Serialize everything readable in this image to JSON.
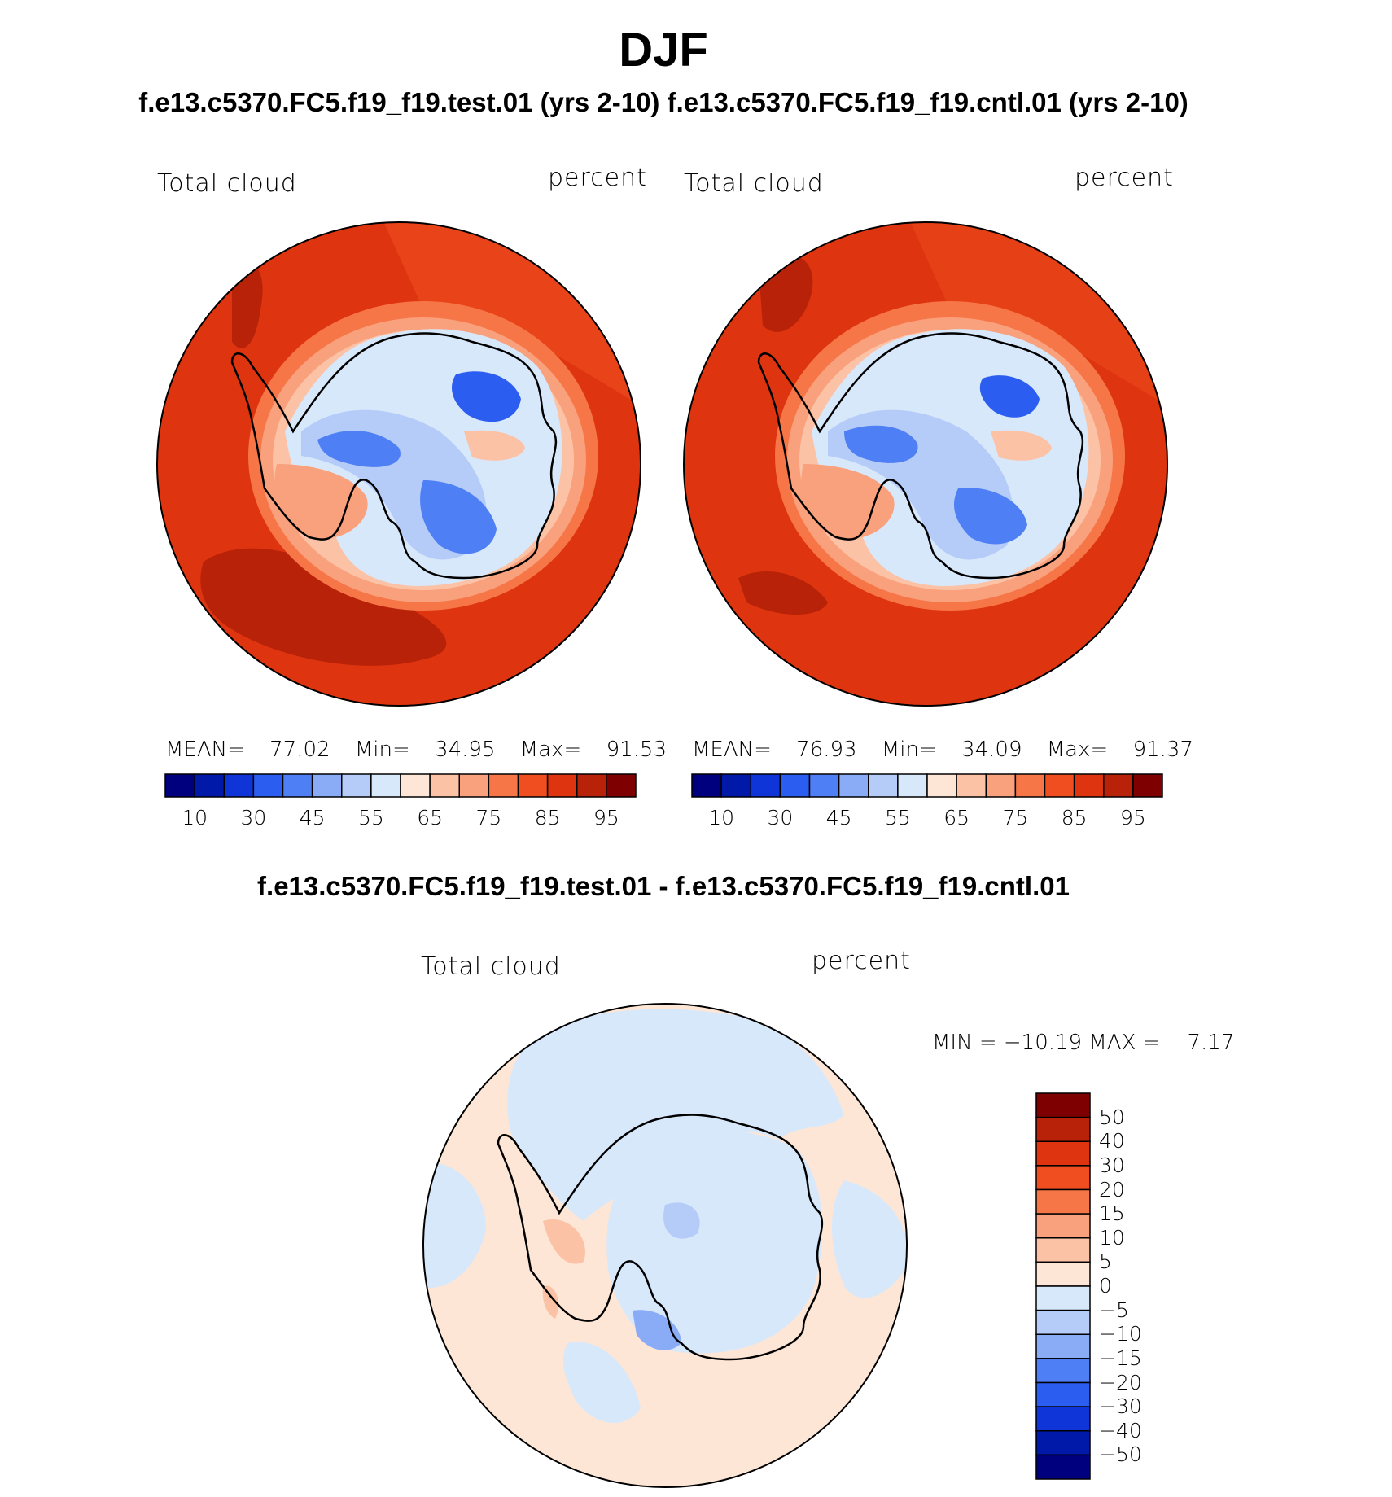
{
  "header": {
    "season": "DJF",
    "subtitle": "f.e13.c5370.FC5.f19_f19.test.01 (yrs 2-10) f.e13.c5370.FC5.f19_f19.cntl.01 (yrs 2-10)"
  },
  "panels": [
    {
      "field_label": "Total cloud",
      "units_label": "percent",
      "stats": {
        "mean_label": "MEAN=",
        "mean": "77.02",
        "min_label": "Min=",
        "min": "34.95",
        "max_label": "Max=",
        "max": "91.53"
      }
    },
    {
      "field_label": "Total cloud",
      "units_label": "percent",
      "stats": {
        "mean_label": "MEAN=",
        "mean": "76.93",
        "min_label": "Min=",
        "min": "34.09",
        "max_label": "Max=",
        "max": "91.37"
      }
    }
  ],
  "abs_colorbar": {
    "colors": [
      "#00007f",
      "#0019a8",
      "#0f35d8",
      "#2b5ef0",
      "#4f7ff4",
      "#8aacf7",
      "#b5ccf9",
      "#d8e8fb",
      "#fde6d6",
      "#fcc2a6",
      "#f9a07c",
      "#f67648",
      "#f04e20",
      "#de3510",
      "#b82208",
      "#7f0000"
    ],
    "tick_labels": [
      "10",
      "30",
      "45",
      "55",
      "65",
      "75",
      "85",
      "95"
    ]
  },
  "difference": {
    "title": "f.e13.c5370.FC5.f19_f19.test.01 - f.e13.c5370.FC5.f19_f19.cntl.01",
    "field_label": "Total cloud",
    "units_label": "percent",
    "minmax_text": "MIN = −10.19 MAX =    7.17",
    "colorbar": {
      "colors": [
        "#7f0000",
        "#b82208",
        "#de3510",
        "#f04e20",
        "#f67648",
        "#f9a07c",
        "#fcc2a6",
        "#fde6d6",
        "#d8e8fb",
        "#b5ccf9",
        "#8aacf7",
        "#4f7ff4",
        "#2b5ef0",
        "#0f35d8",
        "#0019a8",
        "#00007f"
      ],
      "tick_labels": [
        "50",
        "40",
        "30",
        "20",
        "15",
        "10",
        "5",
        "0",
        "−5",
        "−10",
        "−15",
        "−20",
        "−30",
        "−40",
        "−50"
      ]
    }
  }
}
